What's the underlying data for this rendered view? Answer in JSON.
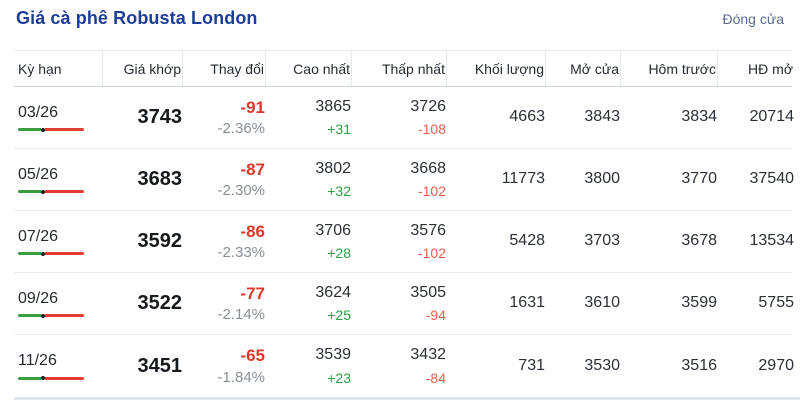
{
  "header": {
    "title": "Giá cà phê Robusta London",
    "close_link": "Đóng cửa"
  },
  "colors": {
    "title": "#1e3d96",
    "link": "#5b6b8f",
    "red_bold": "#df382b",
    "red_sub": "#e4604e",
    "green": "#2f9e44",
    "spark_green": "#3d9c40",
    "spark_red": "#e23c33"
  },
  "table": {
    "columns": [
      "Kỳ hạn",
      "Giá khớp",
      "Thay đổi",
      "Cao nhất",
      "Thấp nhất",
      "Khối lượng",
      "Mở cửa",
      "Hôm trước",
      "HĐ mở"
    ],
    "rows": [
      {
        "term": "03/26",
        "last": "3743",
        "change": "-91",
        "change_pct": "-2.36%",
        "high": "3865",
        "high_delta": "+31",
        "low": "3726",
        "low_delta": "-108",
        "volume": "4663",
        "open": "3843",
        "prev": "3834",
        "open_interest": "20714"
      },
      {
        "term": "05/26",
        "last": "3683",
        "change": "-87",
        "change_pct": "-2.30%",
        "high": "3802",
        "high_delta": "+32",
        "low": "3668",
        "low_delta": "-102",
        "volume": "11773",
        "open": "3800",
        "prev": "3770",
        "open_interest": "37540"
      },
      {
        "term": "07/26",
        "last": "3592",
        "change": "-86",
        "change_pct": "-2.33%",
        "high": "3706",
        "high_delta": "+28",
        "low": "3576",
        "low_delta": "-102",
        "volume": "5428",
        "open": "3703",
        "prev": "3678",
        "open_interest": "13534"
      },
      {
        "term": "09/26",
        "last": "3522",
        "change": "-77",
        "change_pct": "-2.14%",
        "high": "3624",
        "high_delta": "+25",
        "low": "3505",
        "low_delta": "-94",
        "volume": "1631",
        "open": "3610",
        "prev": "3599",
        "open_interest": "5755"
      },
      {
        "term": "11/26",
        "last": "3451",
        "change": "-65",
        "change_pct": "-1.84%",
        "high": "3539",
        "high_delta": "+23",
        "low": "3432",
        "low_delta": "-84",
        "volume": "731",
        "open": "3530",
        "prev": "3516",
        "open_interest": "2970"
      }
    ]
  }
}
